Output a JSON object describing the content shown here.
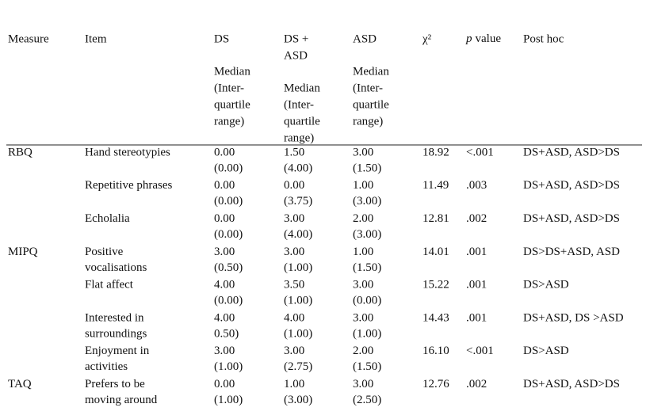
{
  "header": {
    "measure": {
      "lines": [
        "Measure"
      ]
    },
    "item": {
      "lines": [
        "Item"
      ]
    },
    "ds": {
      "lines": [
        "DS"
      ],
      "sub": [
        "Median",
        "(Inter-",
        "quartile",
        "range)"
      ]
    },
    "dsasd": {
      "lines": [
        "DS +",
        "ASD"
      ],
      "sub": [
        "Median",
        "(Inter-",
        "quartile",
        "range)"
      ]
    },
    "asd": {
      "lines": [
        "ASD"
      ],
      "sub": [
        "Median",
        "(Inter-",
        "quartile",
        "range)"
      ]
    },
    "chi": {
      "lines": [
        "χ²"
      ]
    },
    "p": {
      "italic": "p",
      "rest": "value"
    },
    "posthoc": {
      "lines": [
        "Post hoc"
      ]
    }
  },
  "rows": [
    {
      "measure": [
        "RBQ"
      ],
      "item": [
        "Hand stereotypies"
      ],
      "ds": [
        "0.00",
        "(0.00)"
      ],
      "dsasd": [
        "1.50",
        "(4.00)"
      ],
      "asd": [
        "3.00",
        "(1.50)"
      ],
      "chi": [
        "18.92"
      ],
      "p": [
        "<.001"
      ],
      "posthoc": [
        "DS+ASD, ASD>DS"
      ]
    },
    {
      "item": [
        "Repetitive phrases"
      ],
      "ds": [
        "0.00",
        "(0.00)"
      ],
      "dsasd": [
        "0.00",
        "(3.75)"
      ],
      "asd": [
        "1.00",
        "(3.00)"
      ],
      "chi": [
        "11.49"
      ],
      "p": [
        ".003"
      ],
      "posthoc": [
        "DS+ASD, ASD>DS"
      ]
    },
    {
      "item": [
        "Echolalia"
      ],
      "ds": [
        "0.00",
        "(0.00)"
      ],
      "dsasd": [
        "3.00",
        "(4.00)"
      ],
      "asd": [
        "2.00",
        "(3.00)"
      ],
      "chi": [
        "12.81"
      ],
      "p": [
        ".002"
      ],
      "posthoc": [
        "DS+ASD, ASD>DS"
      ]
    },
    {
      "measure": [
        "MIPQ"
      ],
      "item": [
        "Positive",
        "vocalisations"
      ],
      "ds": [
        "3.00",
        "(0.50)"
      ],
      "dsasd": [
        "3.00",
        "(1.00)"
      ],
      "asd": [
        "1.00",
        "(1.50)"
      ],
      "chi": [
        "14.01"
      ],
      "p": [
        ".001"
      ],
      "posthoc": [
        "DS>DS+ASD, ASD"
      ]
    },
    {
      "item": [
        "Flat affect"
      ],
      "ds": [
        "4.00",
        "(0.00)"
      ],
      "dsasd": [
        "3.50",
        "(1.00)"
      ],
      "asd": [
        "3.00",
        "(0.00)"
      ],
      "chi": [
        "15.22"
      ],
      "p": [
        ".001"
      ],
      "posthoc": [
        "DS>ASD"
      ]
    },
    {
      "item": [
        "Interested in",
        "surroundings"
      ],
      "ds": [
        "4.00",
        "0.50)"
      ],
      "dsasd": [
        "4.00",
        "(1.00)"
      ],
      "asd": [
        "3.00",
        "(1.00)"
      ],
      "chi": [
        "14.43"
      ],
      "p": [
        ".001"
      ],
      "posthoc": [
        "DS+ASD, DS >ASD"
      ]
    },
    {
      "item": [
        "Enjoyment in",
        "activities"
      ],
      "ds": [
        "3.00",
        "(1.00)"
      ],
      "dsasd": [
        "3.00",
        "(2.75)"
      ],
      "asd": [
        "2.00",
        "(1.50)"
      ],
      "chi": [
        "16.10"
      ],
      "p": [
        "<.001"
      ],
      "posthoc": [
        "DS>ASD"
      ]
    },
    {
      "measure": [
        "TAQ"
      ],
      "item": [
        "Prefers to be",
        "moving around"
      ],
      "ds": [
        "0.00",
        "(1.00)"
      ],
      "dsasd": [
        "1.00",
        "(3.00)"
      ],
      "asd": [
        "3.00",
        "(2.50)"
      ],
      "chi": [
        "12.76"
      ],
      "p": [
        ".002"
      ],
      "posthoc": [
        "DS+ASD, ASD>DS"
      ]
    }
  ]
}
